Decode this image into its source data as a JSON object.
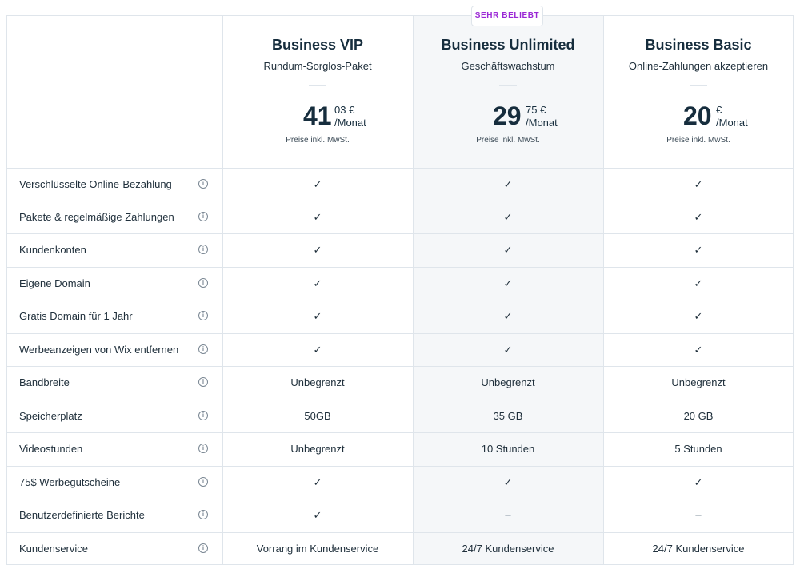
{
  "popular_badge": "SEHR BELIEBT",
  "plans": [
    {
      "name": "Business VIP",
      "tagline": "Rundum-Sorglos-Paket",
      "price_int": "41",
      "price_cents": "03 €",
      "period": "/Monat",
      "tax_note": "Preise inkl. MwSt."
    },
    {
      "name": "Business Unlimited",
      "tagline": "Geschäftswachstum",
      "price_int": "29",
      "price_cents": "75 €",
      "period": "/Monat",
      "tax_note": "Preise inkl. MwSt."
    },
    {
      "name": "Business Basic",
      "tagline": "Online-Zahlungen akzeptieren",
      "price_int": "20",
      "price_cents": "€",
      "period": "/Monat",
      "tax_note": "Preise inkl. MwSt."
    }
  ],
  "info_glyph": "i",
  "features": [
    {
      "label": "Verschlüsselte Online-Bezahlung",
      "values": [
        "✓",
        "✓",
        "✓"
      ]
    },
    {
      "label": "Pakete & regelmäßige Zahlungen",
      "values": [
        "✓",
        "✓",
        "✓"
      ]
    },
    {
      "label": "Kundenkonten",
      "values": [
        "✓",
        "✓",
        "✓"
      ]
    },
    {
      "label": "Eigene Domain",
      "values": [
        "✓",
        "✓",
        "✓"
      ]
    },
    {
      "label": "Gratis Domain für 1 Jahr",
      "values": [
        "✓",
        "✓",
        "✓"
      ]
    },
    {
      "label": "Werbeanzeigen von Wix entfernen",
      "values": [
        "✓",
        "✓",
        "✓"
      ]
    },
    {
      "label": "Bandbreite",
      "values": [
        "Unbegrenzt",
        "Unbegrenzt",
        "Unbegrenzt"
      ]
    },
    {
      "label": "Speicherplatz",
      "values": [
        "50GB",
        "35 GB",
        "20 GB"
      ]
    },
    {
      "label": "Videostunden",
      "values": [
        "Unbegrenzt",
        "10 Stunden",
        "5 Stunden"
      ]
    },
    {
      "label": "75$ Werbegutscheine",
      "values": [
        "✓",
        "✓",
        "✓"
      ]
    },
    {
      "label": "Benutzerdefinierte Berichte",
      "values": [
        "✓",
        "–",
        "–"
      ]
    },
    {
      "label": "Kundenservice",
      "values": [
        "Vorrang im Kundenservice",
        "24/7 Kundenservice",
        "24/7 Kundenservice"
      ]
    }
  ]
}
